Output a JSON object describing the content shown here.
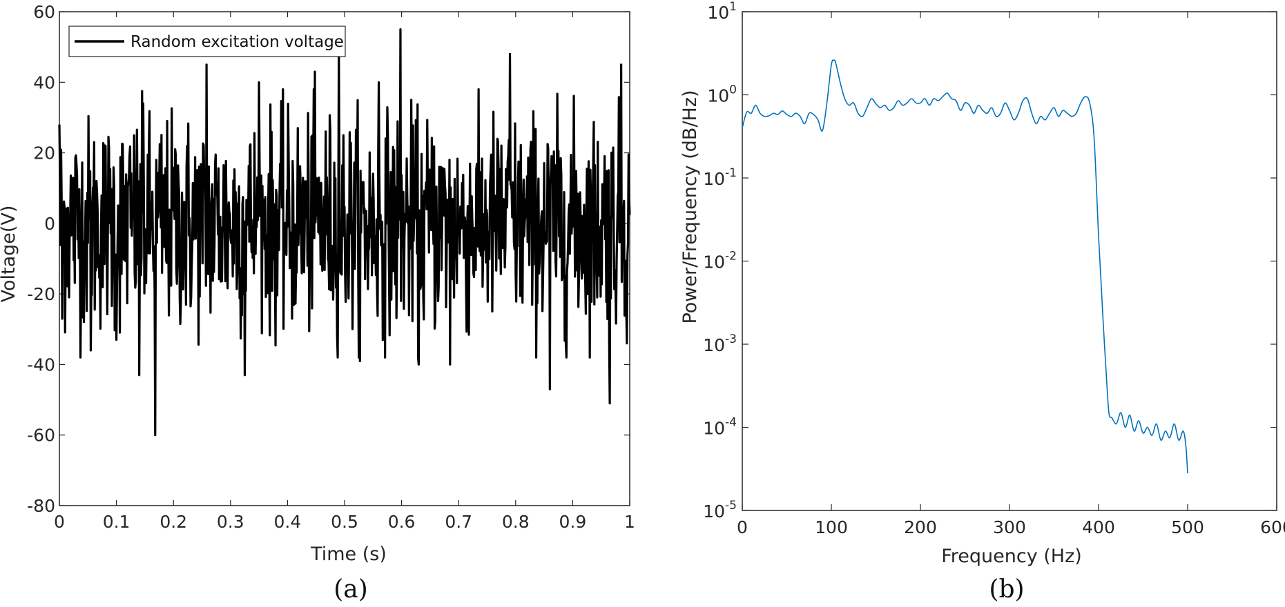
{
  "chart_data": [
    {
      "type": "line",
      "panel_label": "(a)",
      "xlabel": "Time (s)",
      "ylabel": "Voltage(V)",
      "xlim": [
        0,
        1
      ],
      "ylim": [
        -80,
        60
      ],
      "x_ticks": [
        0,
        0.1,
        0.2,
        0.3,
        0.4,
        0.5,
        0.6,
        0.7,
        0.8,
        0.9,
        1
      ],
      "x_tick_labels": [
        "0",
        "0.1",
        "0.2",
        "0.3",
        "0.4",
        "0.5",
        "0.6",
        "0.7",
        "0.8",
        "0.9",
        "1"
      ],
      "y_ticks": [
        -80,
        -60,
        -40,
        -20,
        0,
        20,
        40,
        60
      ],
      "y_tick_labels": [
        "-80",
        "-60",
        "-40",
        "-20",
        "0",
        "20",
        "40",
        "60"
      ],
      "legend": {
        "position": "top-left",
        "entries": [
          "Random excitation voltage"
        ]
      },
      "series": [
        {
          "name": "Random excitation voltage",
          "color": "#000000",
          "sample_count": 1000,
          "std": 15,
          "peaks": [
            {
              "x": 0.0,
              "y": 28
            },
            {
              "x": 0.005,
              "y": -27
            },
            {
              "x": 0.055,
              "y": -36
            },
            {
              "x": 0.1,
              "y": -33
            },
            {
              "x": 0.14,
              "y": -43
            },
            {
              "x": 0.147,
              "y": 34
            },
            {
              "x": 0.168,
              "y": -60
            },
            {
              "x": 0.258,
              "y": 45
            },
            {
              "x": 0.325,
              "y": -43
            },
            {
              "x": 0.35,
              "y": 40
            },
            {
              "x": 0.448,
              "y": 43
            },
            {
              "x": 0.49,
              "y": 49
            },
            {
              "x": 0.527,
              "y": -39
            },
            {
              "x": 0.56,
              "y": 40
            },
            {
              "x": 0.598,
              "y": 55
            },
            {
              "x": 0.63,
              "y": -40
            },
            {
              "x": 0.685,
              "y": -40
            },
            {
              "x": 0.79,
              "y": 48
            },
            {
              "x": 0.86,
              "y": -47
            },
            {
              "x": 0.965,
              "y": -51
            },
            {
              "x": 0.985,
              "y": 45
            },
            {
              "x": 0.995,
              "y": -34
            }
          ]
        }
      ]
    },
    {
      "type": "line",
      "panel_label": "(b)",
      "xlabel": "Frequency (Hz)",
      "ylabel": "Power/Frequency (dB/Hz)",
      "xlim": [
        0,
        600
      ],
      "ylim": [
        1e-05,
        10
      ],
      "y_scale": "log",
      "x_ticks": [
        0,
        100,
        200,
        300,
        400,
        500,
        600
      ],
      "x_tick_labels": [
        "0",
        "100",
        "200",
        "300",
        "400",
        "500",
        "600"
      ],
      "y_ticks": [
        1e-05,
        0.0001,
        0.001,
        0.01,
        0.1,
        1,
        10
      ],
      "y_tick_labels": [
        {
          "base": "10",
          "exp": "-5"
        },
        {
          "base": "10",
          "exp": "-4"
        },
        {
          "base": "10",
          "exp": "-3"
        },
        {
          "base": "10",
          "exp": "-2"
        },
        {
          "base": "10",
          "exp": "-1"
        },
        {
          "base": "10",
          "exp": "0"
        },
        {
          "base": "10",
          "exp": "1"
        }
      ],
      "series": [
        {
          "color": "#0072BD",
          "x": [
            0,
            5,
            10,
            15,
            20,
            25,
            30,
            35,
            40,
            45,
            50,
            55,
            60,
            65,
            70,
            75,
            80,
            85,
            90,
            95,
            100,
            103,
            105,
            110,
            115,
            120,
            125,
            130,
            135,
            140,
            145,
            150,
            155,
            160,
            165,
            170,
            175,
            180,
            185,
            190,
            195,
            200,
            205,
            210,
            215,
            220,
            225,
            230,
            235,
            240,
            245,
            250,
            255,
            260,
            265,
            270,
            275,
            280,
            285,
            290,
            295,
            300,
            305,
            310,
            315,
            320,
            325,
            330,
            335,
            340,
            345,
            350,
            355,
            360,
            365,
            370,
            375,
            380,
            385,
            390,
            395,
            400,
            405,
            410,
            412,
            415,
            420,
            425,
            430,
            435,
            440,
            445,
            450,
            455,
            460,
            465,
            470,
            475,
            480,
            485,
            490,
            495,
            498,
            500
          ],
          "y": [
            0.4,
            0.62,
            0.6,
            0.75,
            0.6,
            0.55,
            0.56,
            0.6,
            0.58,
            0.64,
            0.58,
            0.55,
            0.6,
            0.55,
            0.45,
            0.6,
            0.58,
            0.5,
            0.37,
            0.8,
            2.3,
            2.6,
            2.4,
            1.4,
            0.9,
            0.75,
            0.8,
            0.6,
            0.55,
            0.7,
            0.9,
            0.78,
            0.7,
            0.75,
            0.65,
            0.7,
            0.85,
            0.75,
            0.8,
            0.9,
            0.8,
            0.8,
            0.9,
            0.75,
            0.9,
            0.85,
            0.95,
            1.05,
            0.9,
            0.85,
            0.65,
            0.8,
            0.75,
            0.6,
            0.75,
            0.65,
            0.6,
            0.7,
            0.55,
            0.6,
            0.8,
            0.65,
            0.5,
            0.6,
            0.85,
            0.9,
            0.6,
            0.45,
            0.55,
            0.5,
            0.6,
            0.7,
            0.55,
            0.65,
            0.6,
            0.55,
            0.6,
            0.8,
            0.95,
            0.8,
            0.3,
            0.02,
            0.002,
            0.00025,
            0.00014,
            0.00013,
            0.00011,
            0.00015,
            0.0001,
            0.00014,
            9e-05,
            0.00012,
            8.5e-05,
            0.0001,
            8e-05,
            0.00011,
            7e-05,
            9e-05,
            7.5e-05,
            0.00011,
            7e-05,
            9e-05,
            6e-05,
            2.8e-05
          ]
        }
      ]
    }
  ]
}
